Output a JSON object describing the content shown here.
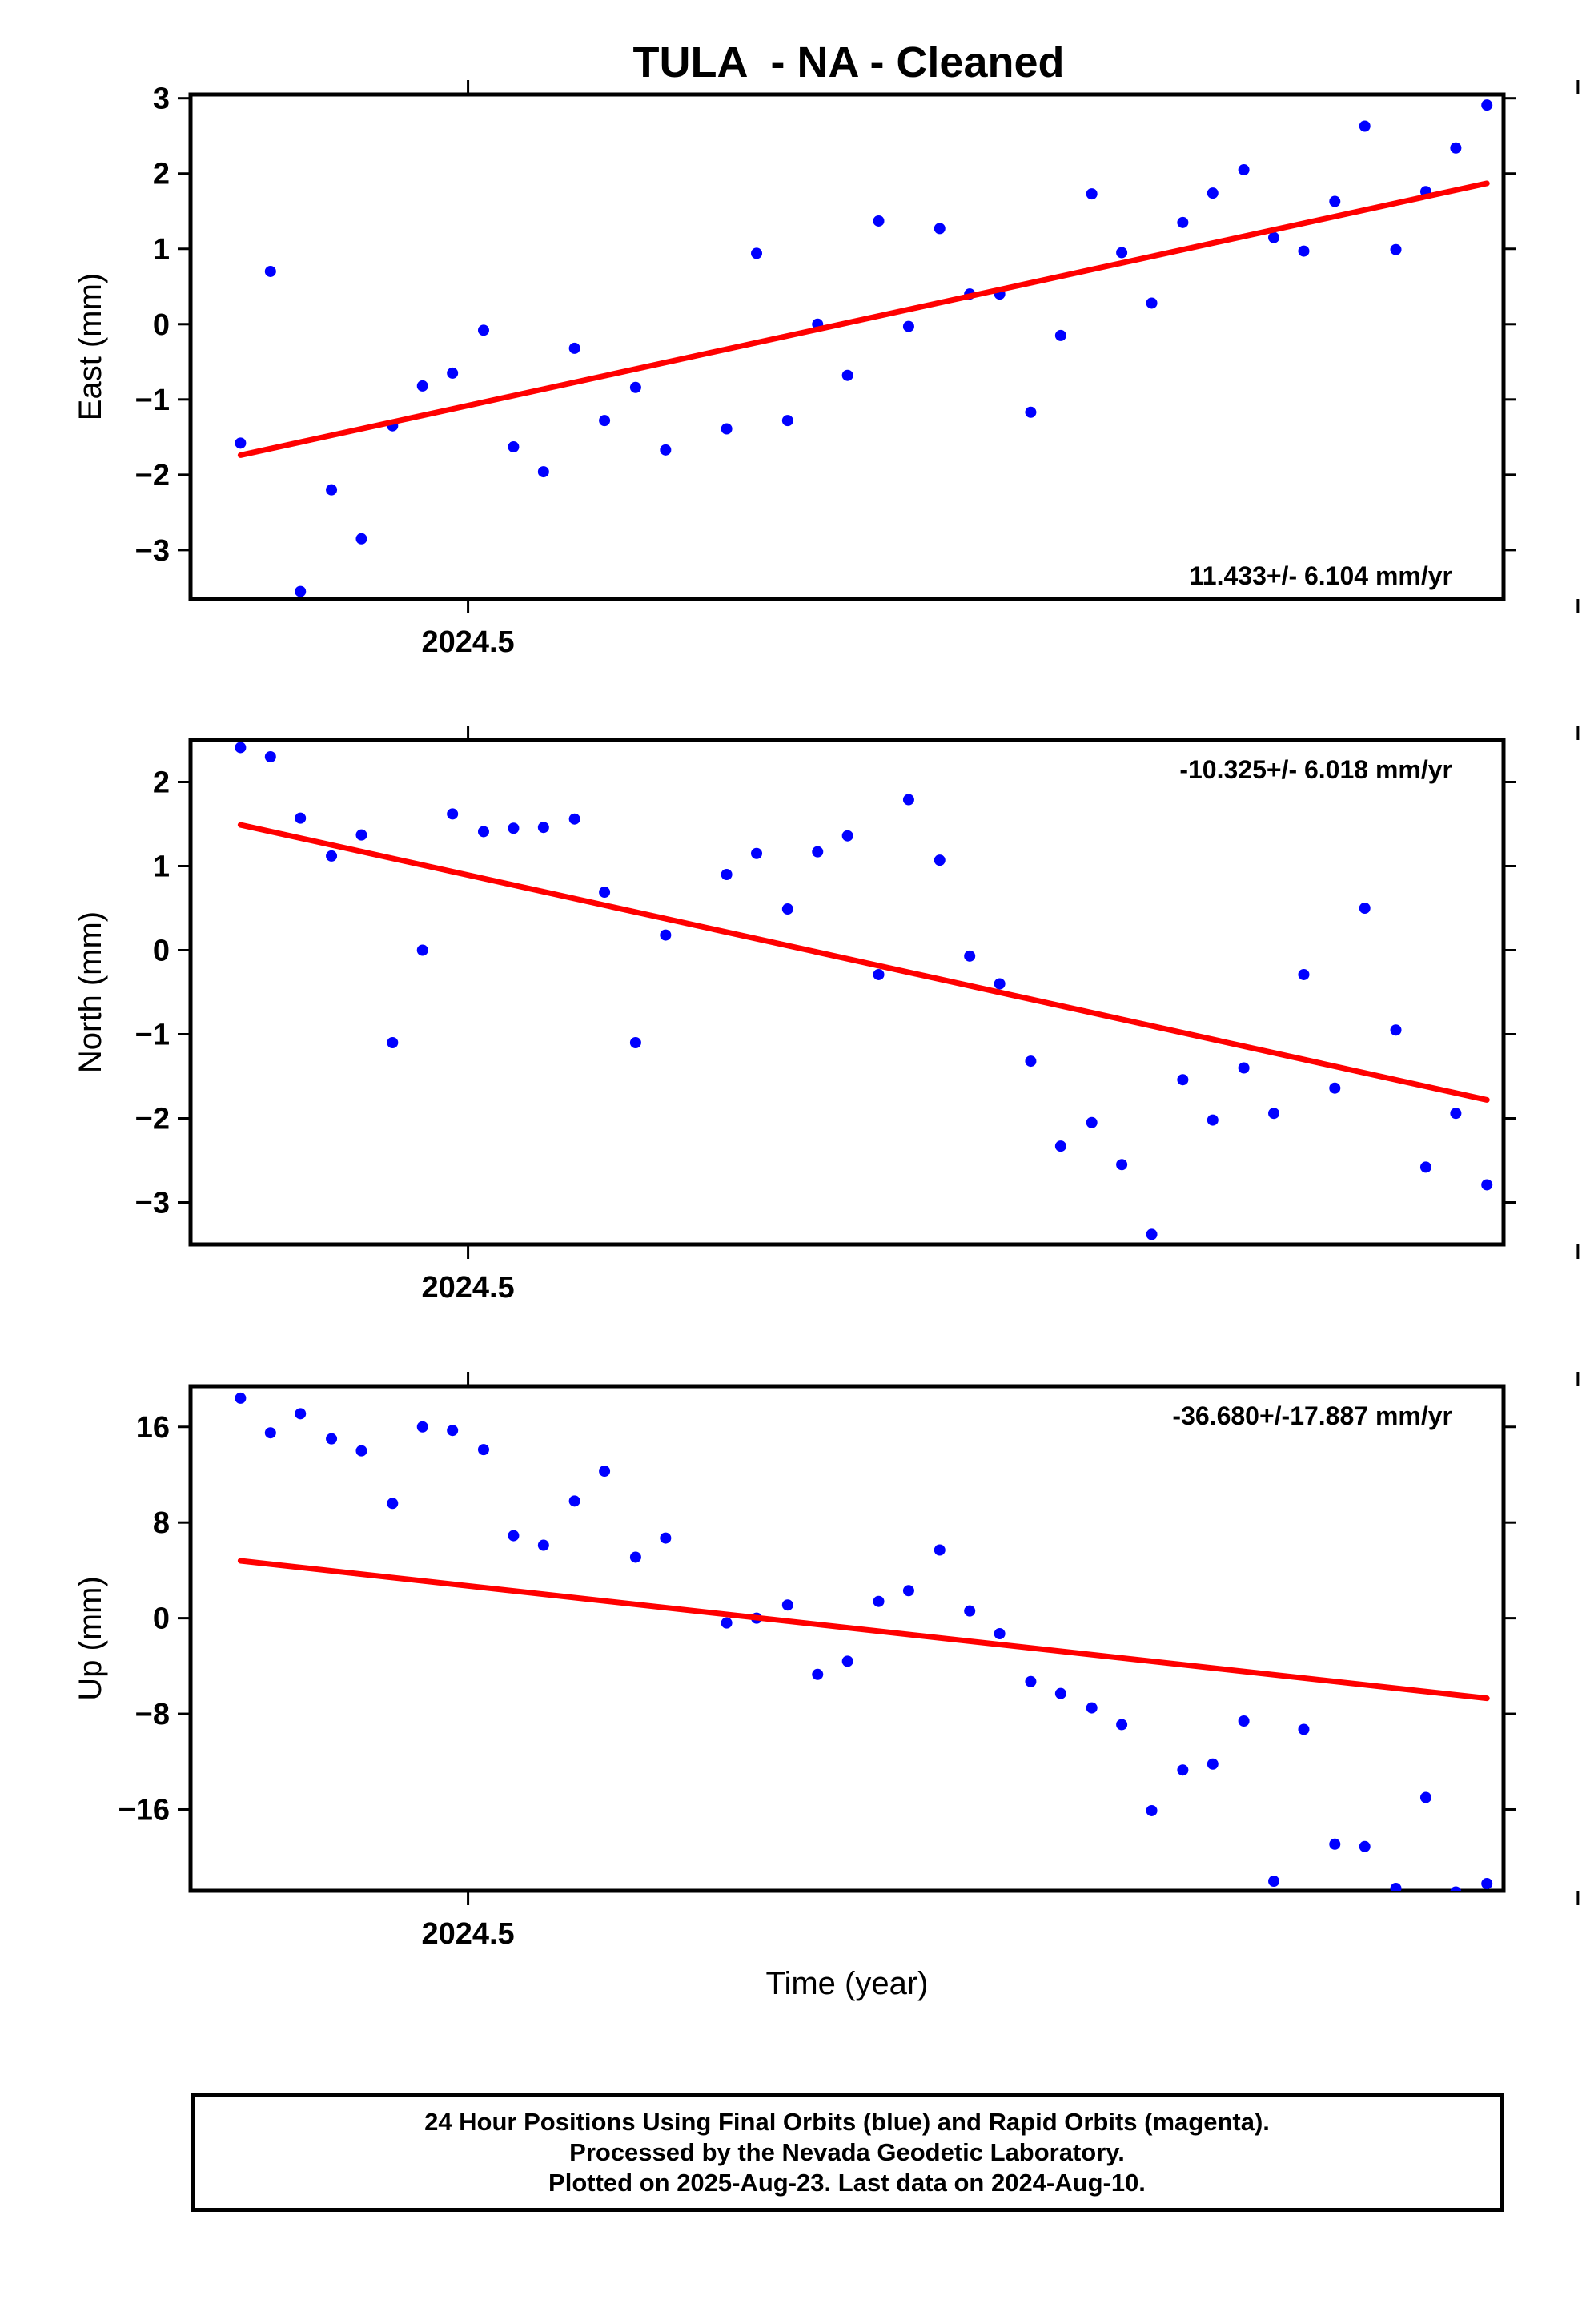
{
  "chart_data": {
    "type": "scatter",
    "title": "TULA  - NA - Cleaned",
    "xlabel": "Time (year)",
    "x": [
      2024.4795,
      2024.4822,
      2024.4849,
      2024.4877,
      2024.4904,
      2024.4932,
      2024.4959,
      2024.4986,
      2024.5014,
      2024.5041,
      2024.5068,
      2024.5096,
      2024.5123,
      2024.5151,
      2024.5178,
      2024.5205,
      2024.5233,
      2024.526,
      2024.5288,
      2024.5315,
      2024.5342,
      2024.537,
      2024.5397,
      2024.5425,
      2024.5452,
      2024.5479,
      2024.5507,
      2024.5534,
      2024.5562,
      2024.5589,
      2024.5616,
      2024.5644,
      2024.5671,
      2024.5699,
      2024.5726,
      2024.5753,
      2024.5781,
      2024.5808,
      2024.5836,
      2024.5863,
      2024.589,
      2024.5918
    ],
    "panels": [
      {
        "ylabel": "East (mm)",
        "ylim": [
          -3.65,
          3.05
        ],
        "yticks": [
          -3,
          -2,
          -1,
          0,
          1,
          2,
          3
        ],
        "ytick_labels": [
          "−3",
          "−2",
          "−1",
          "0",
          "1",
          "2",
          "3"
        ],
        "xtick_labels": [
          "2024.5"
        ],
        "rate_label": "11.433+/- 6.104 mm/yr",
        "rate_position": "bottom-right",
        "y": [
          -1.58,
          0.7,
          -3.55,
          -2.2,
          -2.85,
          -1.35,
          -0.82,
          -0.65,
          -0.08,
          -1.63,
          -1.96,
          -0.32,
          -1.28,
          -0.84,
          -1.67,
          null,
          -1.39,
          0.94,
          -1.28,
          0.0,
          -0.68,
          1.37,
          -0.03,
          1.27,
          0.4,
          0.4,
          -1.17,
          -0.15,
          1.73,
          0.95,
          0.28,
          1.35,
          1.74,
          2.05,
          1.15,
          0.97,
          1.63,
          2.63,
          0.99,
          1.76,
          2.34,
          2.91
        ],
        "trend": [
          [
            2024.4795,
            -1.74
          ],
          [
            2024.5918,
            1.87
          ]
        ]
      },
      {
        "ylabel": "North (mm)",
        "ylim": [
          -3.5,
          2.5
        ],
        "yticks": [
          -3,
          -2,
          -1,
          0,
          1,
          2
        ],
        "ytick_labels": [
          "−3",
          "−2",
          "−1",
          "0",
          "1",
          "2"
        ],
        "xtick_labels": [
          "2024.5"
        ],
        "rate_label": "-10.325+/- 6.018 mm/yr",
        "rate_position": "top-right",
        "y": [
          2.41,
          2.3,
          1.57,
          1.12,
          1.37,
          -1.1,
          0.0,
          1.62,
          1.41,
          1.45,
          1.46,
          1.56,
          0.69,
          -1.1,
          0.18,
          null,
          0.9,
          1.15,
          0.49,
          1.17,
          1.36,
          -0.29,
          1.79,
          1.07,
          -0.07,
          -0.4,
          -1.32,
          -2.33,
          -2.05,
          -2.55,
          -3.38,
          -1.54,
          -2.02,
          -1.4,
          -1.94,
          -0.29,
          -1.64,
          0.5,
          -0.95,
          -2.58,
          -1.94,
          -2.79
        ],
        "trend": [
          [
            2024.4795,
            1.49
          ],
          [
            2024.5918,
            -1.78
          ]
        ]
      },
      {
        "ylabel": "Up (mm)",
        "ylim": [
          -22.8,
          19.4
        ],
        "yticks": [
          -16,
          -8,
          0,
          8,
          16
        ],
        "ytick_labels": [
          "−16",
          "−8",
          "0",
          "8",
          "16"
        ],
        "xtick_labels": [
          "2024.5"
        ],
        "rate_label": "-36.680+/-17.887 mm/yr",
        "rate_position": "top-right",
        "y": [
          18.4,
          15.5,
          17.1,
          15.0,
          14.0,
          9.6,
          16.0,
          15.7,
          14.1,
          6.9,
          6.1,
          9.8,
          12.3,
          5.1,
          6.7,
          null,
          -0.4,
          0.0,
          1.1,
          -4.7,
          -3.6,
          1.4,
          2.3,
          5.7,
          0.6,
          -1.3,
          -5.3,
          -6.3,
          -7.5,
          -8.9,
          -16.1,
          -12.7,
          -12.2,
          -8.6,
          -22.0,
          -9.3,
          -18.9,
          -19.1,
          -22.6,
          -15.0,
          -22.9,
          -22.2
        ],
        "trend": [
          [
            2024.4795,
            4.8
          ],
          [
            2024.5918,
            -6.7
          ]
        ]
      }
    ]
  },
  "footer": {
    "line1": "24 Hour Positions Using Final Orbits (blue) and Rapid Orbits (magenta).",
    "line2": "Processed by the Nevada Geodetic Laboratory.",
    "line3": "Plotted on 2025-Aug-23. Last data on 2024-Aug-10."
  },
  "colors": {
    "points": "#0000ff",
    "trend": "#ff0000",
    "frame": "#000000"
  }
}
